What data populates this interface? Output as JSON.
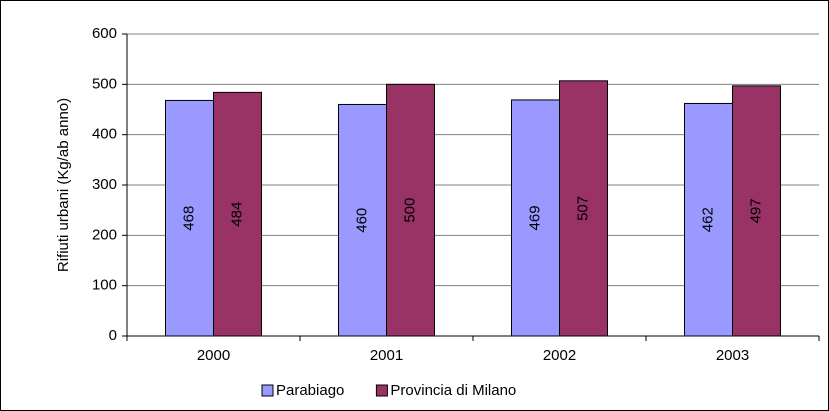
{
  "chart_data": {
    "type": "bar",
    "ylabel": "Rifiuti urbani (Kg/ab anno)",
    "categories": [
      "2000",
      "2001",
      "2002",
      "2003"
    ],
    "series": [
      {
        "name": "Parabiago",
        "color": "#9999ff",
        "values": [
          468,
          460,
          469,
          462
        ]
      },
      {
        "name": "Provincia di Milano",
        "color": "#993366",
        "values": [
          484,
          500,
          507,
          497
        ]
      }
    ],
    "ylim": [
      0,
      600
    ],
    "yticks": [
      0,
      100,
      200,
      300,
      400,
      500,
      600
    ],
    "grid": true,
    "legend": "bottom"
  }
}
